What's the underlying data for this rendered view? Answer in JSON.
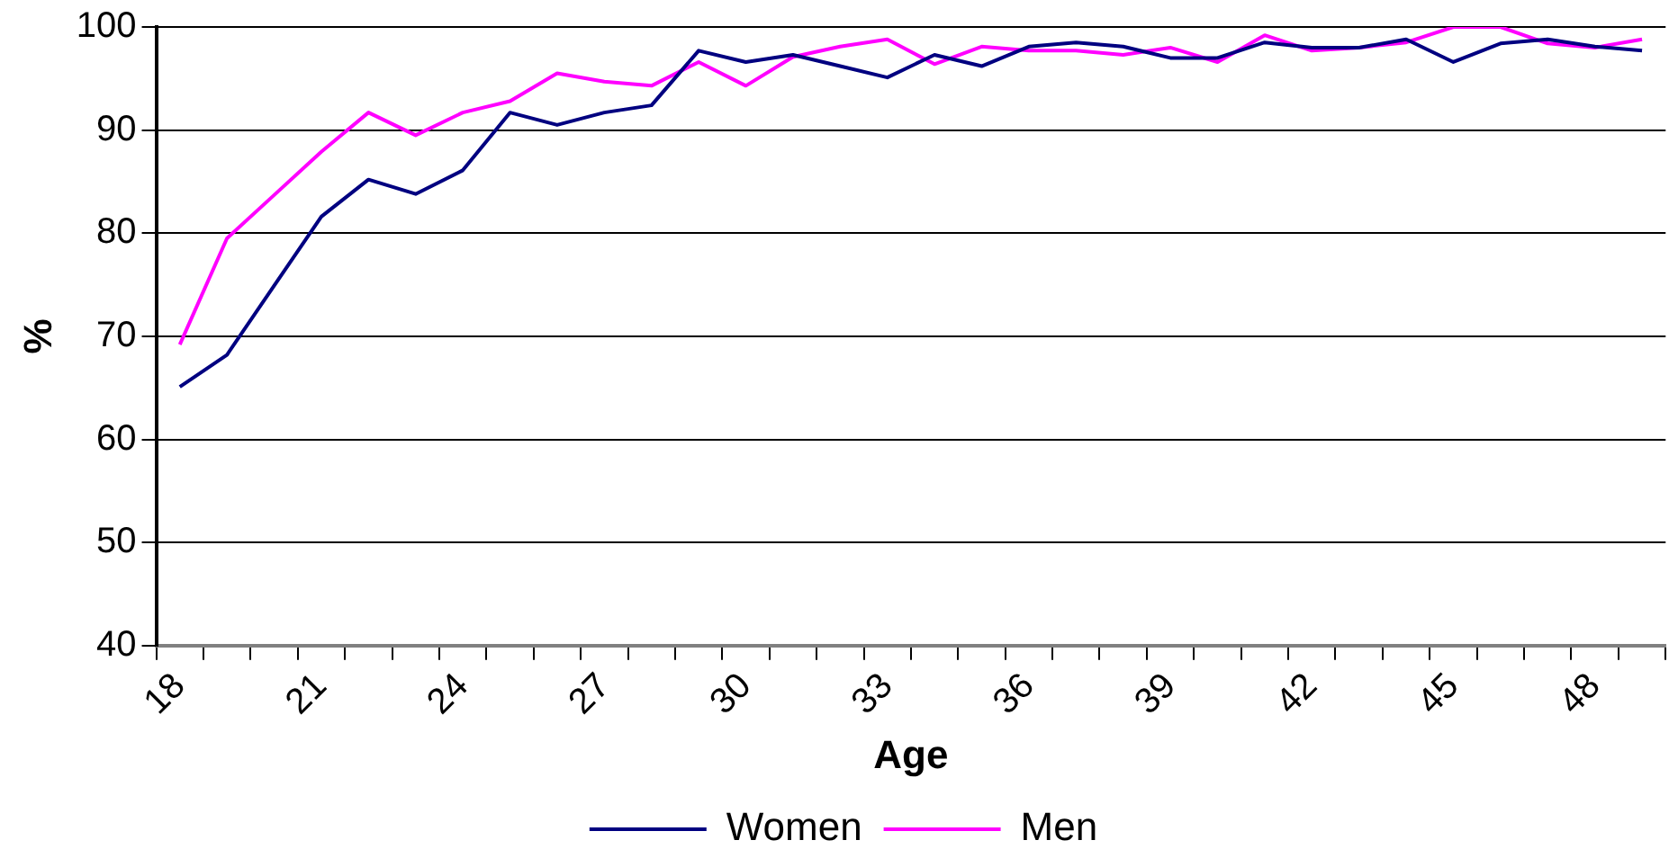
{
  "chart_data": {
    "type": "line",
    "xlabel": "Age",
    "ylabel": "%",
    "categories": [
      "18",
      null,
      null,
      "21",
      null,
      null,
      "24",
      null,
      null,
      "27",
      null,
      null,
      "30",
      null,
      null,
      "33",
      null,
      null,
      "36",
      null,
      null,
      "39",
      null,
      null,
      "42",
      null,
      null,
      "45",
      null,
      null,
      "48",
      null
    ],
    "series": [
      {
        "name": "Women",
        "color": "#000080",
        "values": [
          65.1,
          68.2,
          74.9,
          81.6,
          85.2,
          83.8,
          86.1,
          91.7,
          90.5,
          91.7,
          92.4,
          97.7,
          96.6,
          97.3,
          96.2,
          95.1,
          97.3,
          96.2,
          98.1,
          98.5,
          98.1,
          97.0,
          97.0,
          98.5,
          98.0,
          98.0,
          98.8,
          96.6,
          98.4,
          98.8,
          98.1,
          97.7
        ]
      },
      {
        "name": "Men",
        "color": "#ff00ff",
        "values": [
          69.2,
          79.5,
          83.7,
          87.9,
          91.7,
          89.5,
          91.7,
          92.8,
          95.5,
          94.7,
          94.3,
          96.6,
          94.3,
          97.1,
          98.1,
          98.8,
          96.4,
          98.1,
          97.7,
          97.7,
          97.3,
          98.0,
          96.6,
          99.2,
          97.7,
          98.0,
          98.5,
          100,
          100,
          98.4,
          98.0,
          98.8
        ]
      }
    ],
    "ylim": [
      40,
      100
    ],
    "yticks": [
      40,
      50,
      60,
      70,
      80,
      90,
      100
    ],
    "grid": "y",
    "legend": "bottom",
    "marker": "none",
    "line_style": "solid"
  }
}
